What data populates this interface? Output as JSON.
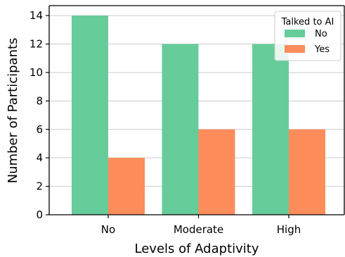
{
  "chart_data": {
    "type": "bar",
    "xlabel": "Levels of Adaptivity",
    "ylabel": "Number of Participants",
    "categories": [
      "No",
      "Moderate",
      "High"
    ],
    "series": [
      {
        "name": "No",
        "values": [
          14,
          12,
          12
        ],
        "color": "#66cc99"
      },
      {
        "name": "Yes",
        "values": [
          4,
          6,
          6
        ],
        "color": "#fc8d5b"
      }
    ],
    "ylim": [
      0,
      14.7
    ],
    "yticks": [
      0,
      2,
      4,
      6,
      8,
      10,
      12,
      14
    ],
    "grid": "y",
    "legend": {
      "title": "Talked to AI",
      "placement": "top-right"
    }
  }
}
